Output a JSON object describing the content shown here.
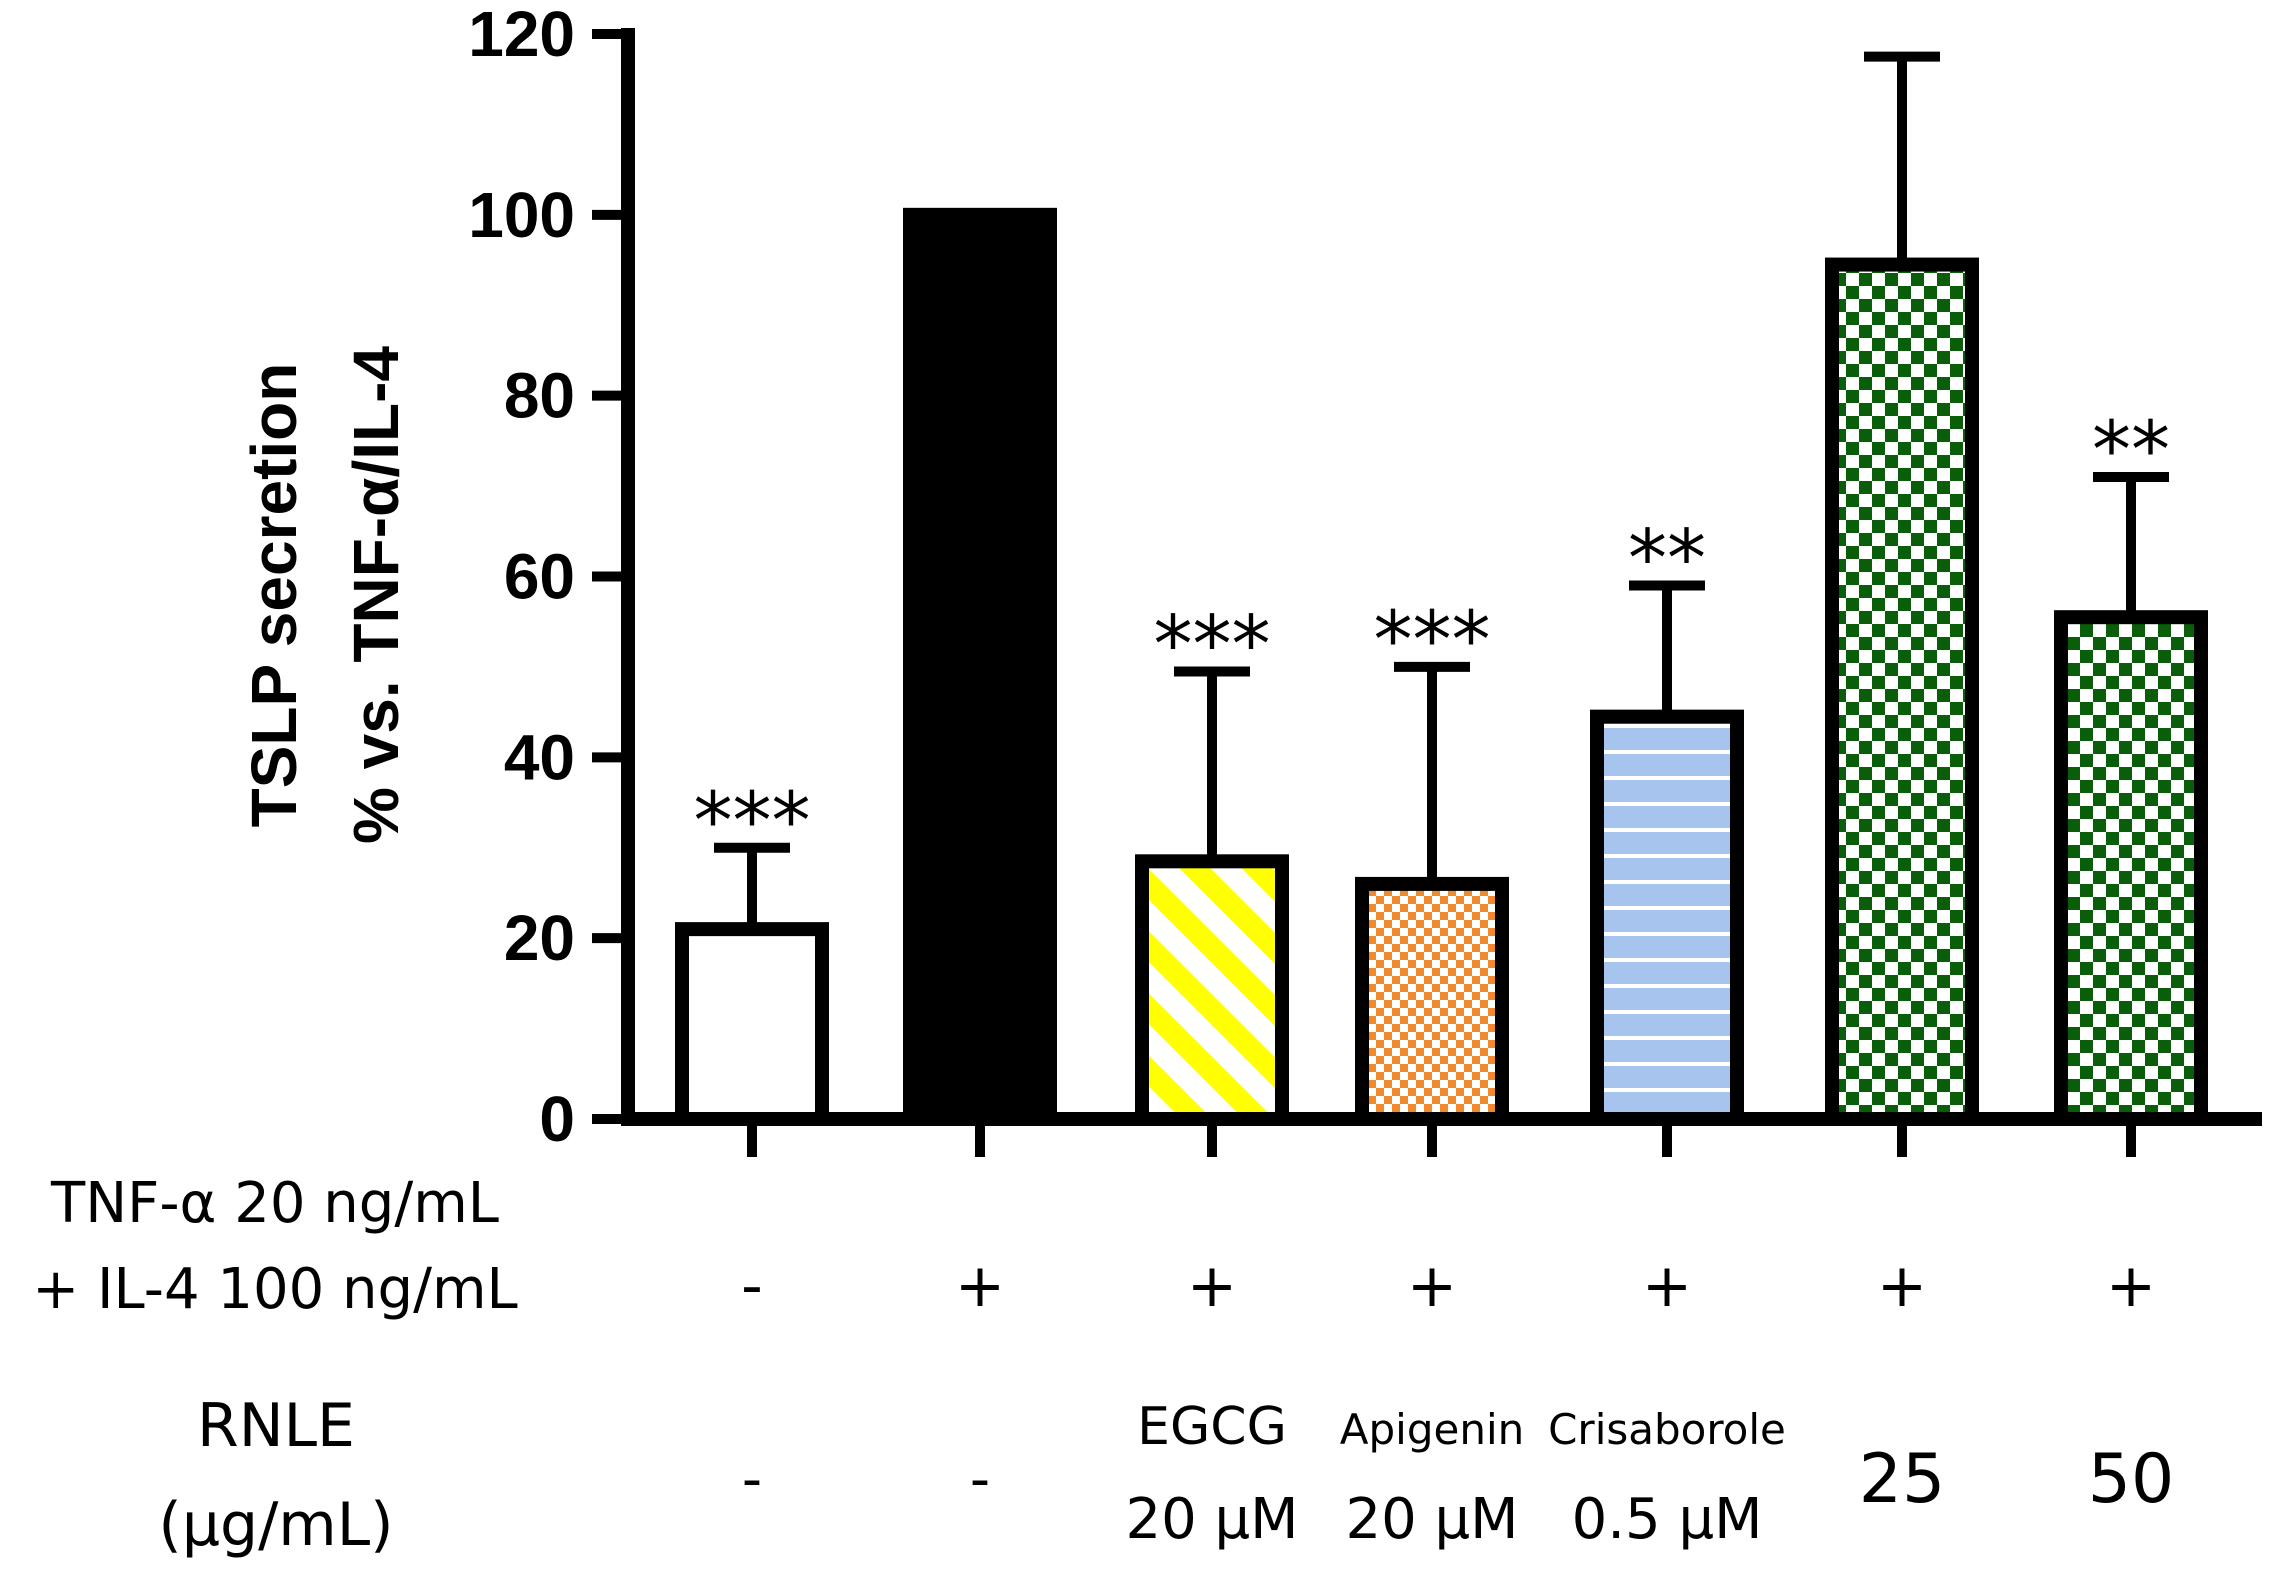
{
  "chart_data": {
    "type": "bar",
    "ylabel_line1": "TSLP secretion",
    "ylabel_line2": "% vs. TNF-α/IL-4",
    "ylim": [
      0,
      120
    ],
    "yticks": [
      "0",
      "20",
      "40",
      "60",
      "80",
      "100",
      "120"
    ],
    "bars": [
      {
        "name": "control",
        "value": 21,
        "error": 9,
        "sig": "***",
        "fill": "white"
      },
      {
        "name": "tnf-il4",
        "value": 100,
        "error": 0,
        "sig": "",
        "fill": "black"
      },
      {
        "name": "egcg",
        "value": 28.5,
        "error": 21,
        "sig": "***",
        "fill": "yellow-diagonal"
      },
      {
        "name": "apigenin",
        "value": 26,
        "error": 24,
        "sig": "***",
        "fill": "orange-check"
      },
      {
        "name": "crisaborole",
        "value": 44.5,
        "error": 14.5,
        "sig": "**",
        "fill": "blue-lines"
      },
      {
        "name": "rnle-25",
        "value": 94.5,
        "error": 23,
        "sig": "",
        "fill": "green-check"
      },
      {
        "name": "rnle-50",
        "value": 55.5,
        "error": 15.5,
        "sig": "**",
        "fill": "green-check"
      }
    ],
    "treatment_row": {
      "label_line1": "TNF-α 20 ng/mL",
      "label_line2": "+ IL-4 100 ng/mL",
      "values": [
        "-",
        "+",
        "+",
        "+",
        "+",
        "+",
        "+"
      ]
    },
    "rnle_row": {
      "label_line1": "RNLE",
      "label_line2": "(μg/mL)",
      "entries": [
        {
          "line1": "",
          "line2": "-"
        },
        {
          "line1": "",
          "line2": "-"
        },
        {
          "line1": "EGCG",
          "line2": "20 μM"
        },
        {
          "line1": "Apigenin",
          "line2": "20 μM"
        },
        {
          "line1": "Crisaborole",
          "line2": "0.5 μM"
        },
        {
          "line1": "",
          "line2": "25"
        },
        {
          "line1": "",
          "line2": "50"
        }
      ]
    },
    "colors": {
      "yellow": "#ffff00",
      "orange": "#f08a2e",
      "blue": "#a6c4ee",
      "green": "#0a5e0a"
    }
  }
}
